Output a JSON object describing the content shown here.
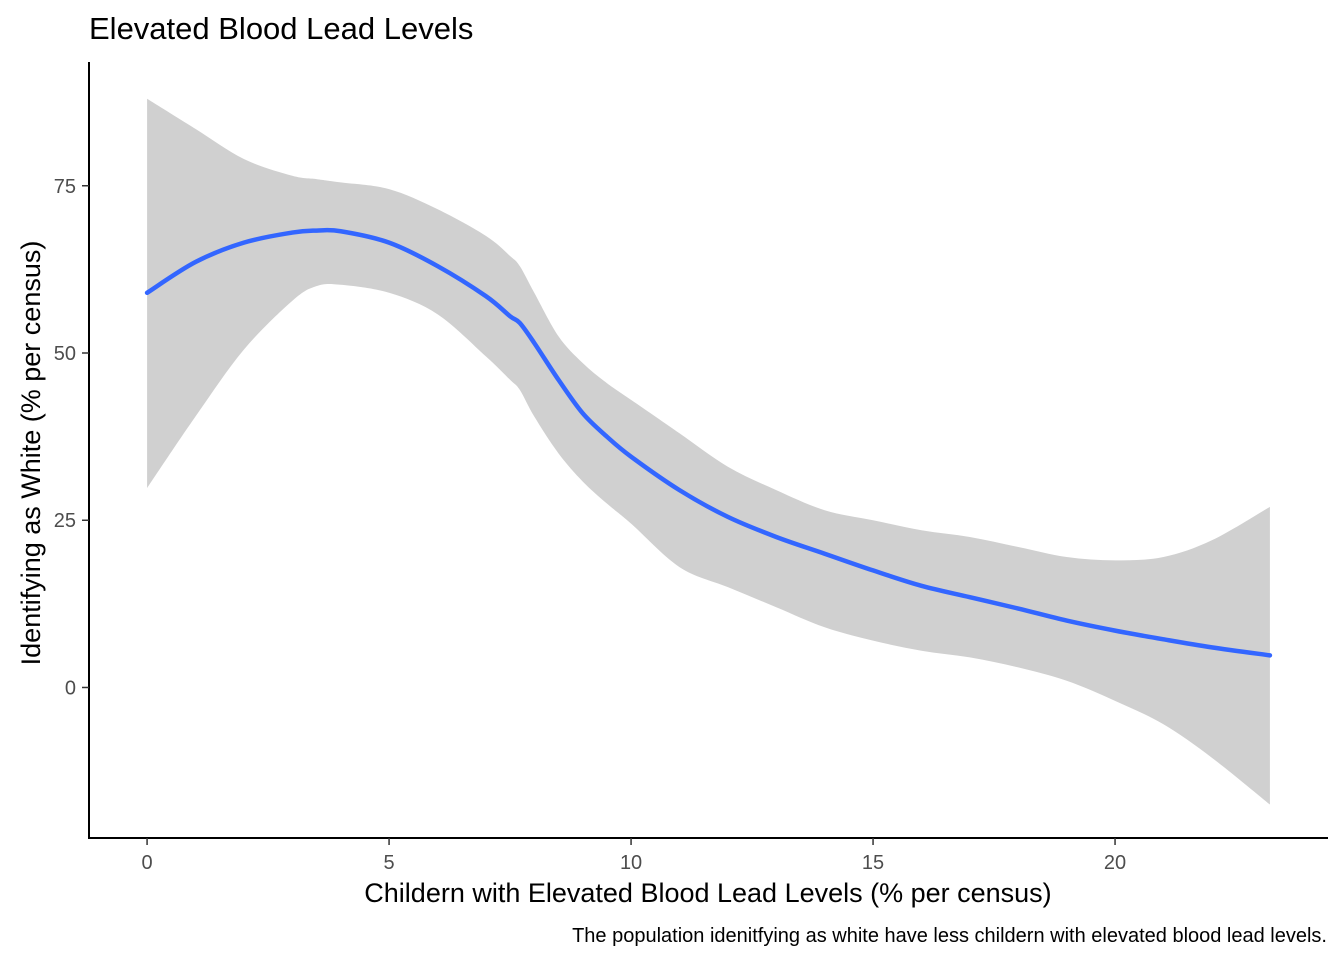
{
  "chart_data": {
    "type": "line",
    "title": "Elevated Blood Lead Levels",
    "xlabel": "Childern with Elevated Blood Lead Levels (% per census)",
    "ylabel": "Identifying as White (% per census)",
    "caption": "The population idenitfying as white have less childern with elevated blood lead levels.",
    "xlim": [
      -1.2,
      24.4
    ],
    "ylim": [
      -22.5,
      93.5
    ],
    "x_ticks": [
      0,
      5,
      10,
      15,
      20
    ],
    "x_tick_labels": [
      "0",
      "5",
      "10",
      "15",
      "20"
    ],
    "y_ticks": [
      0,
      25,
      50,
      75
    ],
    "y_tick_labels": [
      "0",
      "25",
      "50",
      "75"
    ],
    "grid": false,
    "legend": "none",
    "series": [
      {
        "values_x": [
          0,
          1,
          2,
          3,
          3.5,
          4,
          5,
          6,
          7,
          7.5,
          7.7,
          8,
          8.5,
          9,
          9.5,
          10,
          11,
          12,
          13,
          14,
          15,
          16,
          17,
          18,
          19,
          20,
          21,
          22,
          23.2
        ],
        "values_y": [
          59,
          63.6,
          66.5,
          68,
          68.3,
          68.2,
          66.5,
          63,
          58.5,
          55.5,
          54.5,
          51.5,
          46,
          41,
          37.5,
          34.5,
          29.5,
          25.5,
          22.5,
          20,
          17.5,
          15.2,
          13.5,
          11.8,
          10,
          8.5,
          7.2,
          6,
          4.8
        ],
        "lower": [
          29.8,
          40.5,
          50.5,
          57.8,
          60,
          60.2,
          59,
          55.8,
          49.5,
          46,
          44.5,
          40.5,
          35,
          30.8,
          27.5,
          24.5,
          18,
          15,
          12,
          9,
          7,
          5.5,
          4.5,
          3,
          1,
          -2,
          -5.5,
          -10.5,
          -17.5
        ],
        "upper": [
          88,
          83.5,
          79,
          76.5,
          76,
          75.5,
          74.5,
          71.5,
          67.5,
          64.5,
          63,
          59,
          52.5,
          48.5,
          45.5,
          43,
          38,
          33,
          29.5,
          26.5,
          25,
          23.5,
          22.5,
          21,
          19.5,
          19,
          19.5,
          22,
          27
        ]
      }
    ],
    "colors": {
      "line": "#3366FF",
      "ribbon": "#d0d0d0",
      "axis": "#000000"
    }
  }
}
